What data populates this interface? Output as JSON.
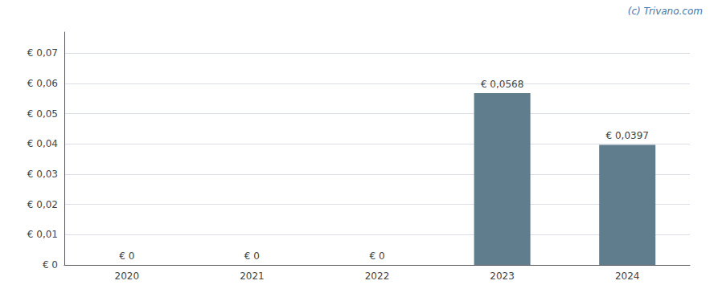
{
  "chart_data": {
    "type": "bar",
    "categories": [
      "2020",
      "2021",
      "2022",
      "2023",
      "2024"
    ],
    "values": [
      0,
      0,
      0,
      0.0568,
      0.0397
    ],
    "value_labels": [
      "€ 0",
      "€ 0",
      "€ 0",
      "€ 0,0568",
      "€ 0,0397"
    ],
    "data_labels": true,
    "color": "#5f7d8c",
    "ylim": [
      0,
      0.077
    ],
    "yticks": [
      {
        "value": 0,
        "label": "€ 0"
      },
      {
        "value": 0.01,
        "label": "€ 0,01"
      },
      {
        "value": 0.02,
        "label": "€ 0,02"
      },
      {
        "value": 0.03,
        "label": "€ 0,03"
      },
      {
        "value": 0.04,
        "label": "€ 0,04"
      },
      {
        "value": 0.05,
        "label": "€ 0,05"
      },
      {
        "value": 0.06,
        "label": "€ 0,06"
      },
      {
        "value": 0.07,
        "label": "€ 0,07"
      }
    ],
    "grid": true,
    "annotations": [
      "(c) Trivano.com"
    ]
  }
}
